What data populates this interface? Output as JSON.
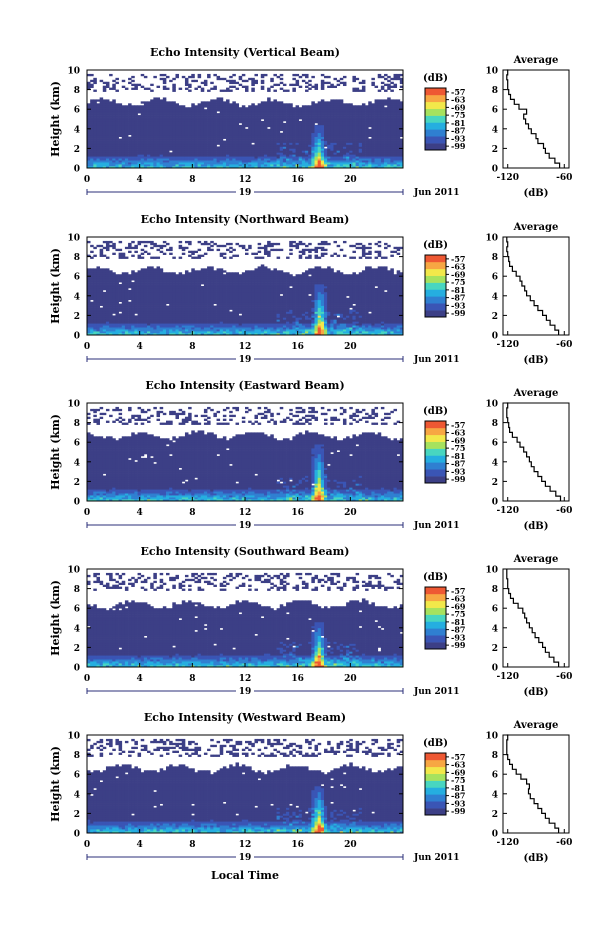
{
  "chart_data": {
    "type": "heatmap",
    "colors": {
      "background": "#ffffff",
      "empty": "#ffffff",
      "base": "#3c3f86",
      "colormap": [
        "#3c3f86",
        "#3a55b5",
        "#2f7fd1",
        "#25aee0",
        "#48d6c0",
        "#a6e25e",
        "#f2e84a",
        "#f7a743",
        "#ee5833"
      ]
    },
    "panels": [
      {
        "title": "Echo Intensity (Vertical Beam)",
        "ylabel": "Height (km)",
        "ylim": [
          0,
          10
        ],
        "yticks": [
          "0",
          "2",
          "4",
          "6",
          "8",
          "10"
        ],
        "xlim": [
          0,
          24
        ],
        "xticks": [
          "0",
          "4",
          "8",
          "12",
          "16",
          "20"
        ],
        "date_label": "19",
        "month_year": "Jun 2011",
        "colorbar": {
          "unit": "(dB)",
          "ticks": [
            "-57",
            "-63",
            "-69",
            "-75",
            "-81",
            "-87",
            "-93",
            "-99"
          ],
          "range": [
            -102,
            -54
          ]
        },
        "average": {
          "title": "Average",
          "xlabel": "(dB)",
          "xticks": [
            "-120",
            "-60"
          ],
          "xlim": [
            -125,
            -55
          ],
          "ylim": [
            0,
            10
          ],
          "profile": [
            [
              -65,
              0
            ],
            [
              -70,
              0.5
            ],
            [
              -76,
              1
            ],
            [
              -80,
              1.5
            ],
            [
              -82,
              2
            ],
            [
              -88,
              2.5
            ],
            [
              -90,
              3
            ],
            [
              -95,
              3.5
            ],
            [
              -98,
              4
            ],
            [
              -101,
              4.5
            ],
            [
              -103,
              5
            ],
            [
              -100,
              5.5
            ],
            [
              -108,
              6
            ],
            [
              -113,
              6.5
            ],
            [
              -117,
              7
            ],
            [
              -119,
              7.5
            ],
            [
              -120,
              8
            ],
            [
              -120,
              8.5
            ],
            [
              -121,
              9
            ],
            [
              -120,
              9.5
            ],
            [
              -121,
              10
            ]
          ]
        },
        "echo_top_km": 6.7,
        "plume_hour": 17.6,
        "plume_top_km": 4.4
      },
      {
        "title": "Echo Intensity (Northward Beam)",
        "ylabel": "Height (km)",
        "ylim": [
          0,
          10
        ],
        "yticks": [
          "0",
          "2",
          "4",
          "6",
          "8",
          "10"
        ],
        "xlim": [
          0,
          24
        ],
        "xticks": [
          "0",
          "4",
          "8",
          "12",
          "16",
          "20"
        ],
        "date_label": "19",
        "month_year": "Jun 2011",
        "colorbar": {
          "unit": "(dB)",
          "ticks": [
            "-57",
            "-63",
            "-69",
            "-75",
            "-81",
            "-87",
            "-93",
            "-99"
          ],
          "range": [
            -102,
            -54
          ]
        },
        "average": {
          "title": "Average",
          "xlabel": "(dB)",
          "xticks": [
            "-120",
            "-60"
          ],
          "xlim": [
            -125,
            -55
          ],
          "ylim": [
            0,
            10
          ],
          "profile": [
            [
              -66,
              0
            ],
            [
              -70,
              0.5
            ],
            [
              -75,
              1
            ],
            [
              -79,
              1.5
            ],
            [
              -83,
              2
            ],
            [
              -88,
              2.5
            ],
            [
              -92,
              3
            ],
            [
              -96,
              3.5
            ],
            [
              -100,
              4
            ],
            [
              -102,
              4.5
            ],
            [
              -105,
              5
            ],
            [
              -107,
              5.5
            ],
            [
              -111,
              6
            ],
            [
              -115,
              6.5
            ],
            [
              -118,
              7
            ],
            [
              -119,
              7.5
            ],
            [
              -120,
              8
            ],
            [
              -121,
              8.5
            ],
            [
              -120,
              9
            ],
            [
              -121,
              9.5
            ],
            [
              -121,
              10
            ]
          ]
        },
        "echo_top_km": 6.6,
        "plume_hour": 17.7,
        "plume_top_km": 5.3
      },
      {
        "title": "Echo Intensity (Eastward Beam)",
        "ylabel": "Height (km)",
        "ylim": [
          0,
          10
        ],
        "yticks": [
          "0",
          "2",
          "4",
          "6",
          "8",
          "10"
        ],
        "xlim": [
          0,
          24
        ],
        "xticks": [
          "0",
          "4",
          "8",
          "12",
          "16",
          "20"
        ],
        "date_label": "19",
        "month_year": "Jun 2011",
        "colorbar": {
          "unit": "(dB)",
          "ticks": [
            "-57",
            "-63",
            "-69",
            "-75",
            "-81",
            "-87",
            "-93",
            "-99"
          ],
          "range": [
            -102,
            -54
          ]
        },
        "average": {
          "title": "Average",
          "xlabel": "(dB)",
          "xticks": [
            "-120",
            "-60"
          ],
          "xlim": [
            -125,
            -55
          ],
          "ylim": [
            0,
            10
          ],
          "profile": [
            [
              -64,
              0
            ],
            [
              -69,
              0.5
            ],
            [
              -75,
              1
            ],
            [
              -80,
              1.5
            ],
            [
              -84,
              2
            ],
            [
              -88,
              2.5
            ],
            [
              -92,
              3
            ],
            [
              -95,
              3.5
            ],
            [
              -97,
              4
            ],
            [
              -100,
              4.5
            ],
            [
              -103,
              5
            ],
            [
              -107,
              5.5
            ],
            [
              -110,
              6
            ],
            [
              -115,
              6.5
            ],
            [
              -118,
              7
            ],
            [
              -119,
              7.5
            ],
            [
              -120,
              8
            ],
            [
              -121,
              8.5
            ],
            [
              -121,
              9
            ],
            [
              -120,
              9.5
            ],
            [
              -121,
              10
            ]
          ]
        },
        "echo_top_km": 6.7,
        "plume_hour": 17.6,
        "plume_top_km": 5.8
      },
      {
        "title": "Echo Intensity (Southward Beam)",
        "ylabel": "Height (km)",
        "ylim": [
          0,
          10
        ],
        "yticks": [
          "0",
          "2",
          "4",
          "6",
          "8",
          "10"
        ],
        "xlim": [
          0,
          24
        ],
        "xticks": [
          "0",
          "4",
          "8",
          "12",
          "16",
          "20"
        ],
        "date_label": "19",
        "month_year": "Jun 2011",
        "colorbar": {
          "unit": "(dB)",
          "ticks": [
            "-57",
            "-63",
            "-69",
            "-75",
            "-81",
            "-87",
            "-93",
            "-99"
          ],
          "range": [
            -102,
            -54
          ]
        },
        "average": {
          "title": "Average",
          "xlabel": "(dB)",
          "xticks": [
            "-120",
            "-60"
          ],
          "xlim": [
            -125,
            -55
          ],
          "ylim": [
            0,
            10
          ],
          "profile": [
            [
              -66,
              0
            ],
            [
              -71,
              0.5
            ],
            [
              -76,
              1
            ],
            [
              -80,
              1.5
            ],
            [
              -83,
              2
            ],
            [
              -87,
              2.5
            ],
            [
              -91,
              3
            ],
            [
              -94,
              3.5
            ],
            [
              -97,
              4
            ],
            [
              -100,
              4.5
            ],
            [
              -102,
              5
            ],
            [
              -104,
              5.5
            ],
            [
              -109,
              6
            ],
            [
              -114,
              6.5
            ],
            [
              -117,
              7
            ],
            [
              -119,
              7.5
            ],
            [
              -120,
              8
            ],
            [
              -120,
              8.5
            ],
            [
              -121,
              9
            ],
            [
              -121,
              9.5
            ],
            [
              -121,
              10
            ]
          ]
        },
        "echo_top_km": 6.4,
        "plume_hour": 17.6,
        "plume_top_km": 4.6
      },
      {
        "title": "Echo Intensity (Westward Beam)",
        "ylabel": "Height (km)",
        "ylim": [
          0,
          10
        ],
        "yticks": [
          "0",
          "2",
          "4",
          "6",
          "8",
          "10"
        ],
        "xlim": [
          0,
          24
        ],
        "xticks": [
          "0",
          "4",
          "8",
          "12",
          "16",
          "20"
        ],
        "date_label": "19",
        "month_year": "Jun 2011",
        "colorbar": {
          "unit": "(dB)",
          "ticks": [
            "-57",
            "-63",
            "-69",
            "-75",
            "-81",
            "-87",
            "-93",
            "-99"
          ],
          "range": [
            -102,
            -54
          ]
        },
        "average": {
          "title": "Average",
          "xlabel": "(dB)",
          "xticks": [
            "-120",
            "-60"
          ],
          "xlim": [
            -125,
            -55
          ],
          "ylim": [
            0,
            10
          ],
          "profile": [
            [
              -66,
              0
            ],
            [
              -70,
              0.5
            ],
            [
              -76,
              1
            ],
            [
              -80,
              1.5
            ],
            [
              -84,
              2
            ],
            [
              -88,
              2.5
            ],
            [
              -92,
              3
            ],
            [
              -96,
              3.5
            ],
            [
              -98,
              4
            ],
            [
              -97,
              4.5
            ],
            [
              -100,
              5
            ],
            [
              -106,
              5.5
            ],
            [
              -111,
              6
            ],
            [
              -115,
              6.5
            ],
            [
              -118,
              7
            ],
            [
              -120,
              7.5
            ],
            [
              -121,
              8
            ],
            [
              -121,
              8.5
            ],
            [
              -121,
              9
            ],
            [
              -120,
              9.5
            ],
            [
              -121,
              10
            ]
          ]
        },
        "echo_top_km": 6.6,
        "plume_hour": 17.6,
        "plume_top_km": 4.8
      }
    ],
    "shared_xlabel": "Local Time"
  }
}
